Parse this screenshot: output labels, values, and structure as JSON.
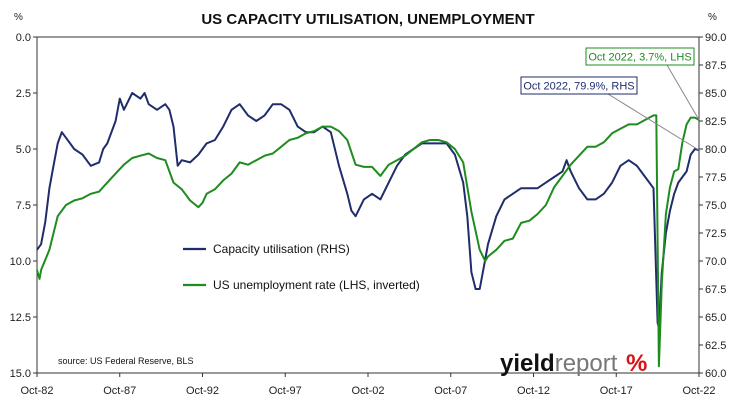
{
  "chart_data": {
    "type": "line",
    "title": "US CAPACITY UTILISATION, UNEMPLOYMENT",
    "left_unit": "%",
    "right_unit": "%",
    "x_ticks": [
      "Oct-82",
      "Oct-87",
      "Oct-92",
      "Oct-97",
      "Oct-02",
      "Oct-07",
      "Oct-12",
      "Oct-17",
      "Oct-22"
    ],
    "x_tick_years": [
      1982.75,
      1987.75,
      1992.75,
      1997.75,
      2002.75,
      2007.75,
      2012.75,
      2017.75,
      2022.75
    ],
    "xlim": [
      1982.75,
      2022.75
    ],
    "left_axis": {
      "label": "",
      "inverted": true,
      "ylim": [
        0,
        15
      ],
      "ticks": [
        "0.0",
        "2.5",
        "5.0",
        "7.5",
        "10.0",
        "12.5",
        "15.0"
      ]
    },
    "right_axis": {
      "label": "",
      "ylim": [
        60,
        90
      ],
      "ticks": [
        "60.0",
        "62.5",
        "65.0",
        "67.5",
        "70.0",
        "72.5",
        "75.0",
        "77.5",
        "80.0",
        "82.5",
        "85.0",
        "87.5",
        "90.0"
      ]
    },
    "grid": false,
    "legend_position": "middle",
    "series": [
      {
        "name": "Capacity utilisation (RHS)",
        "axis": "right",
        "color": "#1f2d6b",
        "x": [
          1982.75,
          1983.0,
          1983.25,
          1983.5,
          1983.75,
          1984.0,
          1984.25,
          1984.5,
          1984.75,
          1985.0,
          1985.5,
          1986.0,
          1986.5,
          1986.75,
          1987.0,
          1987.5,
          1987.75,
          1988.0,
          1988.5,
          1989.0,
          1989.25,
          1989.5,
          1990.0,
          1990.5,
          1990.75,
          1991.0,
          1991.25,
          1991.5,
          1992.0,
          1992.5,
          1993.0,
          1993.5,
          1994.0,
          1994.5,
          1995.0,
          1995.5,
          1996.0,
          1996.5,
          1997.0,
          1997.5,
          1998.0,
          1998.5,
          1999.0,
          1999.5,
          2000.0,
          2000.5,
          2001.0,
          2001.5,
          2001.75,
          2002.0,
          2002.5,
          2003.0,
          2003.5,
          2004.0,
          2004.5,
          2005.0,
          2005.5,
          2006.0,
          2006.5,
          2007.0,
          2007.5,
          2008.0,
          2008.5,
          2008.75,
          2009.0,
          2009.25,
          2009.5,
          2009.75,
          2010.0,
          2010.5,
          2011.0,
          2011.5,
          2012.0,
          2012.5,
          2013.0,
          2013.5,
          2014.0,
          2014.5,
          2014.75,
          2015.0,
          2015.5,
          2016.0,
          2016.5,
          2017.0,
          2017.5,
          2018.0,
          2018.5,
          2019.0,
          2019.5,
          2020.0,
          2020.25,
          2020.33,
          2020.5,
          2020.75,
          2021.0,
          2021.25,
          2021.5,
          2021.75,
          2022.0,
          2022.25,
          2022.5,
          2022.75
        ],
        "values": [
          71.0,
          71.5,
          73.5,
          76.5,
          78.5,
          80.5,
          81.5,
          81.0,
          80.5,
          80.0,
          79.5,
          78.5,
          78.8,
          80.0,
          80.5,
          82.5,
          84.5,
          83.5,
          85.0,
          84.5,
          85.0,
          84.0,
          83.5,
          84.0,
          83.5,
          82.0,
          78.5,
          79.0,
          78.8,
          79.5,
          80.5,
          80.8,
          82.0,
          83.5,
          84.0,
          83.0,
          82.5,
          83.0,
          84.0,
          84.0,
          83.5,
          82.0,
          81.5,
          81.5,
          82.0,
          81.5,
          78.5,
          76.0,
          74.5,
          74.0,
          75.5,
          76.0,
          75.5,
          77.0,
          78.5,
          79.5,
          80.0,
          80.5,
          80.5,
          80.5,
          80.5,
          79.5,
          77.0,
          74.0,
          69.0,
          67.5,
          67.5,
          69.5,
          71.5,
          74.0,
          75.5,
          76.0,
          76.5,
          76.5,
          76.5,
          77.0,
          77.5,
          78.0,
          79.0,
          78.0,
          76.5,
          75.5,
          75.5,
          76.0,
          77.0,
          78.5,
          79.0,
          78.5,
          77.5,
          76.5,
          64.5,
          64.0,
          69.0,
          72.5,
          74.5,
          76.0,
          77.0,
          77.5,
          78.0,
          79.5,
          80.0,
          79.9
        ]
      },
      {
        "name": "US unemployment rate (LHS, inverted)",
        "axis": "left",
        "color": "#1f8c1f",
        "x": [
          1982.75,
          1982.9,
          1983.0,
          1983.5,
          1984.0,
          1984.5,
          1985.0,
          1985.5,
          1986.0,
          1986.5,
          1987.0,
          1987.5,
          1988.0,
          1988.5,
          1989.0,
          1989.5,
          1990.0,
          1990.5,
          1991.0,
          1991.5,
          1992.0,
          1992.5,
          1992.75,
          1993.0,
          1993.5,
          1994.0,
          1994.5,
          1995.0,
          1995.5,
          1996.0,
          1996.5,
          1997.0,
          1997.5,
          1998.0,
          1998.5,
          1999.0,
          1999.5,
          2000.0,
          2000.5,
          2001.0,
          2001.5,
          2002.0,
          2002.5,
          2003.0,
          2003.5,
          2004.0,
          2004.5,
          2005.0,
          2005.5,
          2006.0,
          2006.5,
          2007.0,
          2007.5,
          2008.0,
          2008.5,
          2009.0,
          2009.5,
          2009.83,
          2010.0,
          2010.5,
          2011.0,
          2011.5,
          2012.0,
          2012.5,
          2013.0,
          2013.5,
          2014.0,
          2014.5,
          2015.0,
          2015.5,
          2016.0,
          2016.5,
          2017.0,
          2017.5,
          2018.0,
          2018.5,
          2019.0,
          2019.5,
          2020.0,
          2020.17,
          2020.33,
          2020.5,
          2020.75,
          2021.0,
          2021.25,
          2021.5,
          2021.75,
          2022.0,
          2022.25,
          2022.5,
          2022.75
        ],
        "values": [
          10.4,
          10.8,
          10.4,
          9.5,
          8.0,
          7.5,
          7.3,
          7.2,
          7.0,
          6.9,
          6.5,
          6.1,
          5.7,
          5.4,
          5.3,
          5.2,
          5.4,
          5.5,
          6.5,
          6.8,
          7.3,
          7.6,
          7.4,
          7.0,
          6.8,
          6.4,
          6.1,
          5.6,
          5.7,
          5.5,
          5.3,
          5.2,
          4.9,
          4.6,
          4.5,
          4.3,
          4.2,
          4.0,
          4.0,
          4.2,
          4.6,
          5.7,
          5.8,
          5.8,
          6.2,
          5.7,
          5.5,
          5.3,
          5.0,
          4.7,
          4.6,
          4.6,
          4.7,
          5.0,
          5.6,
          7.8,
          9.5,
          10.0,
          9.8,
          9.5,
          9.1,
          9.0,
          8.3,
          8.2,
          7.9,
          7.5,
          6.7,
          6.2,
          5.7,
          5.3,
          4.9,
          4.9,
          4.7,
          4.3,
          4.1,
          3.9,
          3.9,
          3.7,
          3.5,
          3.5,
          14.7,
          11.0,
          7.9,
          6.7,
          6.0,
          5.9,
          4.7,
          3.9,
          3.6,
          3.6,
          3.7
        ]
      }
    ],
    "annotations": [
      {
        "text": "Oct 2022, 3.7%, LHS",
        "color": "#1f8c1f",
        "series": 1
      },
      {
        "text": "Oct 2022, 79.9%, RHS",
        "color": "#1f2d6b",
        "series": 0
      }
    ],
    "source": "source: US Federal Reserve, BLS",
    "logo": {
      "word1": "yield",
      "word2": "report",
      "symbol": "%"
    }
  }
}
